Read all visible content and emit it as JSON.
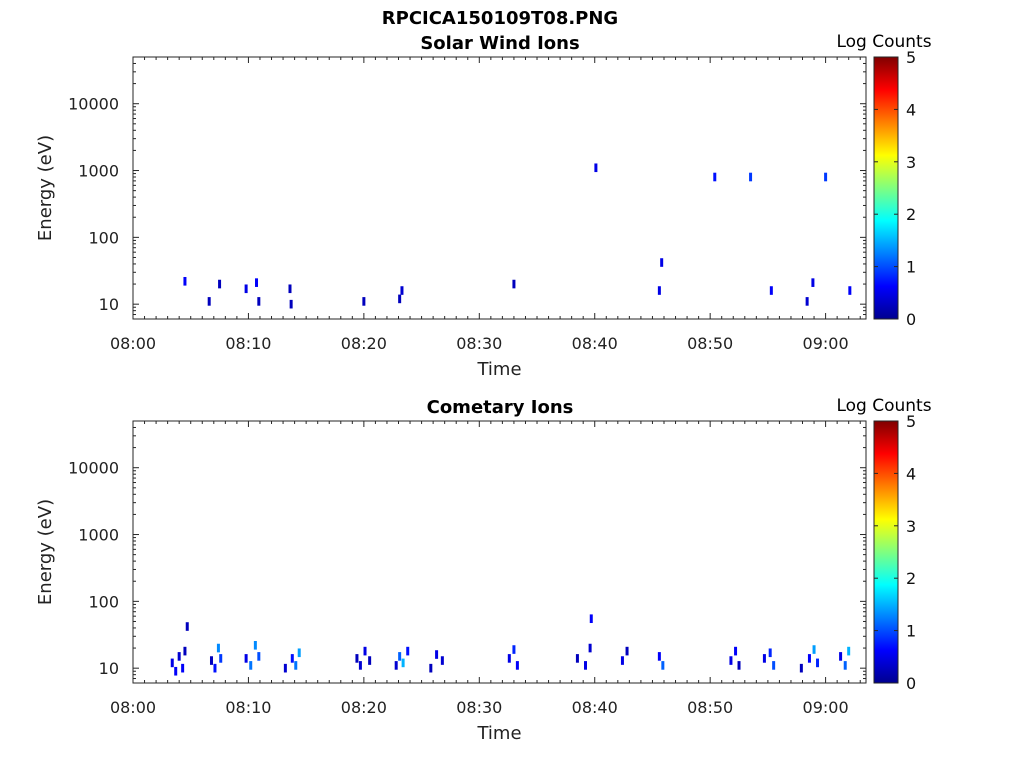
{
  "figure": {
    "title": "RPCICA150109T08.PNG"
  },
  "colors": {
    "colormap": "jet",
    "axis": "#262626",
    "background": "#ffffff"
  },
  "chart_data": [
    {
      "type": "heatmap",
      "title": "Solar Wind Ions",
      "xlabel": "Time",
      "ylabel": "Energy (eV)",
      "x_unit": "minutes since 08:00",
      "xlim": [
        0,
        63.5
      ],
      "y_scale": "log",
      "ylim": [
        6,
        50000
      ],
      "x_ticks": [
        0,
        10,
        20,
        30,
        40,
        50,
        60
      ],
      "x_tick_labels": [
        "08:00",
        "08:10",
        "08:20",
        "08:30",
        "08:40",
        "08:50",
        "09:00"
      ],
      "y_ticks": [
        10,
        100,
        1000,
        10000
      ],
      "y_tick_labels": [
        "10",
        "100",
        "1000",
        "10000"
      ],
      "colorbar": {
        "label": "Log Counts",
        "range": [
          0,
          5
        ],
        "ticks": [
          "0",
          "1",
          "2",
          "3",
          "4",
          "5"
        ]
      },
      "cells": [
        [
          4.5,
          22,
          0.6
        ],
        [
          6.6,
          11,
          0.3
        ],
        [
          7.5,
          20,
          0.3
        ],
        [
          9.8,
          17,
          0.5
        ],
        [
          10.7,
          21,
          0.6
        ],
        [
          10.9,
          11,
          0.3
        ],
        [
          13.6,
          17,
          0.3
        ],
        [
          13.7,
          10,
          0.3
        ],
        [
          20.0,
          11,
          0.3
        ],
        [
          23.1,
          12,
          0.3
        ],
        [
          23.3,
          16,
          0.4
        ],
        [
          33.0,
          20,
          0.3
        ],
        [
          40.1,
          1100,
          0.5
        ],
        [
          45.6,
          16,
          0.5
        ],
        [
          45.8,
          42,
          0.5
        ],
        [
          50.4,
          800,
          0.7
        ],
        [
          53.5,
          800,
          0.9
        ],
        [
          55.3,
          16,
          0.6
        ],
        [
          58.4,
          11,
          0.4
        ],
        [
          58.9,
          21,
          0.5
        ],
        [
          60.0,
          800,
          0.9
        ],
        [
          62.1,
          16,
          0.6
        ]
      ]
    },
    {
      "type": "heatmap",
      "title": "Cometary Ions",
      "xlabel": "Time",
      "ylabel": "Energy (eV)",
      "x_unit": "minutes since 08:00",
      "xlim": [
        0,
        63.5
      ],
      "y_scale": "log",
      "ylim": [
        6,
        50000
      ],
      "x_ticks": [
        0,
        10,
        20,
        30,
        40,
        50,
        60
      ],
      "x_tick_labels": [
        "08:00",
        "08:10",
        "08:20",
        "08:30",
        "08:40",
        "08:50",
        "09:00"
      ],
      "y_ticks": [
        10,
        100,
        1000,
        10000
      ],
      "y_tick_labels": [
        "10",
        "100",
        "1000",
        "10000"
      ],
      "colorbar": {
        "label": "Log Counts",
        "range": [
          0,
          5
        ],
        "ticks": [
          "0",
          "1",
          "2",
          "3",
          "4",
          "5"
        ]
      },
      "cells": [
        [
          3.4,
          12,
          0.5
        ],
        [
          3.7,
          9,
          0.6
        ],
        [
          4.0,
          15,
          0.4
        ],
        [
          4.3,
          10,
          0.6
        ],
        [
          4.5,
          18,
          0.3
        ],
        [
          4.7,
          42,
          0.3
        ],
        [
          6.8,
          13,
          0.3
        ],
        [
          7.1,
          10,
          0.7
        ],
        [
          7.4,
          20,
          1.3
        ],
        [
          7.6,
          14,
          0.9
        ],
        [
          9.8,
          14,
          0.5
        ],
        [
          10.2,
          11,
          1.2
        ],
        [
          10.6,
          22,
          1.3
        ],
        [
          10.9,
          15,
          1.0
        ],
        [
          13.2,
          10,
          0.4
        ],
        [
          13.8,
          14,
          0.7
        ],
        [
          14.1,
          11,
          1.2
        ],
        [
          14.4,
          17,
          1.4
        ],
        [
          19.4,
          14,
          0.3
        ],
        [
          19.7,
          11,
          0.4
        ],
        [
          20.1,
          18,
          0.5
        ],
        [
          20.5,
          13,
          0.3
        ],
        [
          22.8,
          11,
          0.4
        ],
        [
          23.1,
          15,
          1.1
        ],
        [
          23.4,
          12,
          1.5
        ],
        [
          23.8,
          18,
          0.7
        ],
        [
          25.8,
          10,
          0.3
        ],
        [
          26.3,
          16,
          0.5
        ],
        [
          26.8,
          13,
          0.4
        ],
        [
          32.6,
          14,
          0.5
        ],
        [
          33.0,
          19,
          0.8
        ],
        [
          33.3,
          11,
          0.6
        ],
        [
          38.5,
          14,
          0.3
        ],
        [
          39.2,
          11,
          0.5
        ],
        [
          39.6,
          20,
          0.4
        ],
        [
          39.7,
          55,
          0.6
        ],
        [
          42.4,
          13,
          0.5
        ],
        [
          42.8,
          18,
          0.3
        ],
        [
          45.6,
          15,
          0.6
        ],
        [
          45.9,
          11,
          1.1
        ],
        [
          51.8,
          13,
          0.5
        ],
        [
          52.2,
          18,
          0.6
        ],
        [
          52.5,
          11,
          0.3
        ],
        [
          54.7,
          14,
          0.5
        ],
        [
          55.2,
          17,
          0.8
        ],
        [
          55.5,
          11,
          1.0
        ],
        [
          57.9,
          10,
          0.3
        ],
        [
          58.6,
          14,
          0.6
        ],
        [
          59.0,
          19,
          1.4
        ],
        [
          59.3,
          12,
          0.8
        ],
        [
          61.3,
          15,
          0.5
        ],
        [
          61.7,
          11,
          1.1
        ],
        [
          62.0,
          18,
          1.5
        ]
      ]
    }
  ]
}
